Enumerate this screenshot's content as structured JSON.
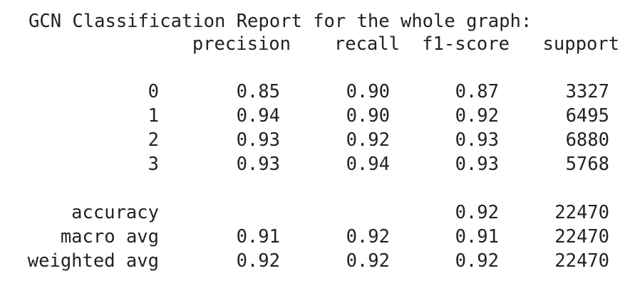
{
  "header": {
    "title": "GCN Classification Report for the whole graph:"
  },
  "table": {
    "columns": [
      "precision",
      "recall",
      "f1-score",
      "support"
    ],
    "rows": [
      [
        "0",
        "0.85",
        "0.90",
        "0.87",
        "3327"
      ],
      [
        "1",
        "0.94",
        "0.90",
        "0.92",
        "6495"
      ],
      [
        "2",
        "0.93",
        "0.92",
        "0.93",
        "6880"
      ],
      [
        "3",
        "0.93",
        "0.94",
        "0.93",
        "5768"
      ],
      [
        "accuracy",
        null,
        null,
        "0.92",
        "22470"
      ],
      [
        "macro avg",
        "0.91",
        "0.92",
        "0.91",
        "22470"
      ],
      [
        "weighted avg",
        "0.92",
        "0.92",
        "0.92",
        "22470"
      ]
    ]
  }
}
